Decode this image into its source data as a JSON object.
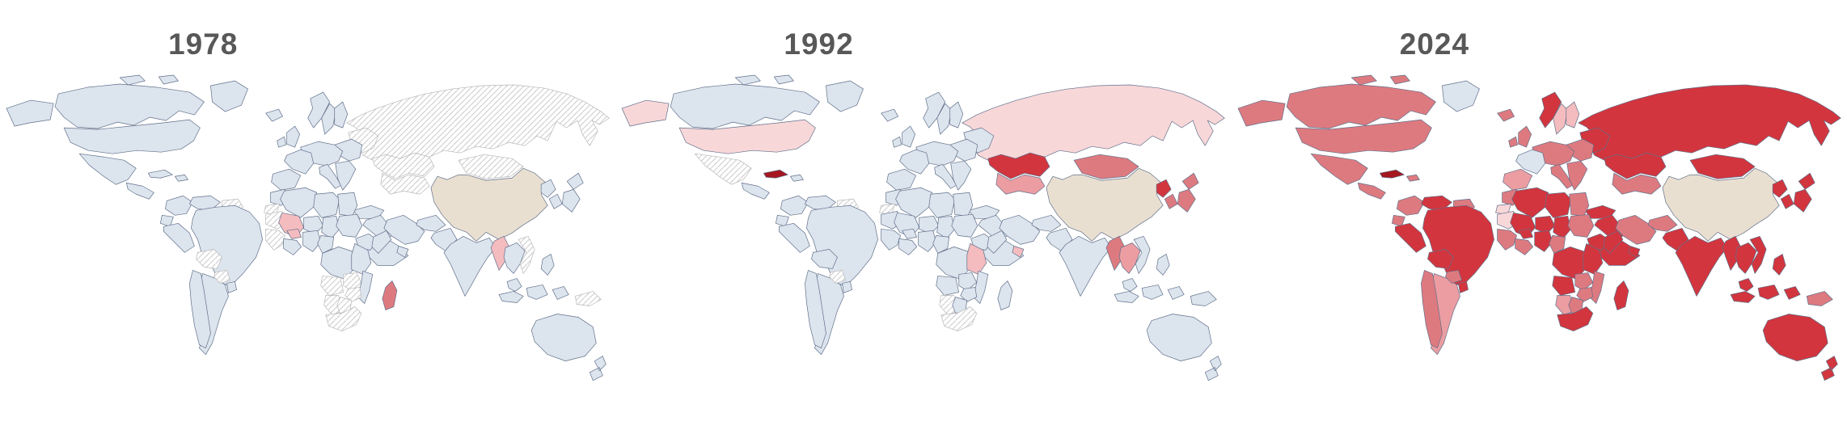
{
  "figure": {
    "background": "#ffffff"
  },
  "palette": {
    "base": "#dce4ee",
    "beige": "#e9dfd1",
    "p1": "#f8d7d9",
    "p2": "#f4bcbf",
    "p3": "#eb9da2",
    "p4": "#dd7a80",
    "p5": "#d2353e",
    "p6": "#a5161f",
    "border": "#61708a",
    "no_data_border": "#b8b8b8",
    "no_data_hatch_line": "#c0c0c0",
    "title_color": "#585858"
  },
  "chart_data": {
    "type": "heatmap",
    "subtype": "choropleth_world_map_small_multiples",
    "years": [
      "1978",
      "1992",
      "2024"
    ],
    "legend": "none visible",
    "color_categories": {
      "base": "light blue-gray (baseline)",
      "p1": "very light pink",
      "p2": "light pink",
      "p3": "medium pink",
      "p4": "salmon red",
      "p5": "red",
      "p6": "dark red",
      "beige": "beige (China)",
      "no_data": "white with diagonal hatching"
    },
    "series": [
      {
        "year": "1978",
        "fills": {
          "russia": "no_data",
          "ukraine": "no_data",
          "kazakhstan": "no_data",
          "centralasia": "no_data",
          "mongolia": "no_data",
          "vietnam": "no_data",
          "guyanas": "no_data",
          "bolivia": "no_data",
          "paraguay": "no_data",
          "mauritania": "no_data",
          "wsahara": "no_data",
          "westafrica_w": "no_data",
          "angola": "no_data",
          "zambia": "no_data",
          "zimbabwe": "no_data",
          "namibia": "no_data",
          "botswana": "no_data",
          "southafrica": "no_data",
          "newguinea": "no_data",
          "china": "beige",
          "myanmar": "p2",
          "mali": "p2",
          "burkina": "p2",
          "madagascar": "p4"
        }
      },
      {
        "year": "1992",
        "fills": {
          "russia": "p1",
          "kazakhstan": "p5",
          "centralasia": "p3",
          "mongolia": "p4",
          "china": "beige",
          "nkorea": "p5",
          "skorea": "p4",
          "japan": "p4",
          "myanmar": "p4",
          "indochina": "p3",
          "usa": "p1",
          "alaska": "p1",
          "mexico": "no_data",
          "cuba": "p6",
          "eastafrica": "p2",
          "gulf": "p2",
          "southafrica": "no_data",
          "namibia": "no_data",
          "wsahara": "no_data",
          "paraguay": "no_data",
          "guyanas": "no_data"
        }
      },
      {
        "year": "2024",
        "fills": {
          "canada": "p4",
          "alaska": "p4",
          "usa": "p4",
          "mexico": "p4",
          "centralamerica": "p4",
          "cuba": "p6",
          "hispaniola": "p4",
          "colombia": "p4",
          "venezuela": "p5",
          "guyanas": "p4",
          "ecuador": "p4",
          "peru": "p5",
          "brazil": "p5",
          "bolivia": "p5",
          "paraguay": "p4",
          "chile": "p4",
          "argentina": "p3",
          "uruguay": "p5",
          "iceland": "p4",
          "ireland": "p4",
          "uk": "p4",
          "norway": "p5",
          "sweden": "p2",
          "finland": "p2",
          "france": "base",
          "iberia": "p3",
          "europe_c": "p4",
          "italy": "p4",
          "easteurope": "p4",
          "balkans": "p4",
          "ukraine": "p5",
          "russia": "p5",
          "kazakhstan": "p5",
          "centralasia": "p4",
          "mongolia": "p5",
          "china": "beige",
          "nkorea": "p5",
          "skorea": "p5",
          "japan": "p5",
          "turkey": "p5",
          "middleeast": "p5",
          "saudi": "p5",
          "gulf": "p5",
          "iran": "p4",
          "afghanistan": "p4",
          "pakistan": "p5",
          "india": "p5",
          "myanmar": "p5",
          "indochina": "p5",
          "vietnam": "p5",
          "malaysia": "p5",
          "philippines": "p5",
          "indonesia": "p5",
          "newguinea": "p4",
          "australia": "p5",
          "nz": "p5",
          "morocco": "p4",
          "wsahara": "p1",
          "algeria": "p5",
          "libya": "p5",
          "egypt": "p4",
          "mauritania": "p1",
          "mali": "p5",
          "niger": "p5",
          "chad": "p5",
          "sudan": "p4",
          "ethiopia": "p5",
          "somalia": "p5",
          "westafrica_w": "p4",
          "burkina": "p5",
          "westafrica_e": "p4",
          "nigeria": "p5",
          "centralafrica": "p4",
          "drc": "p5",
          "eastafrica": "p5",
          "angola": "p5",
          "zambia": "p4",
          "mozambique": "p4",
          "zimbabwe": "p4",
          "namibia": "p3",
          "botswana": "p4",
          "southafrica": "p5",
          "madagascar": "p5"
        }
      }
    ]
  }
}
